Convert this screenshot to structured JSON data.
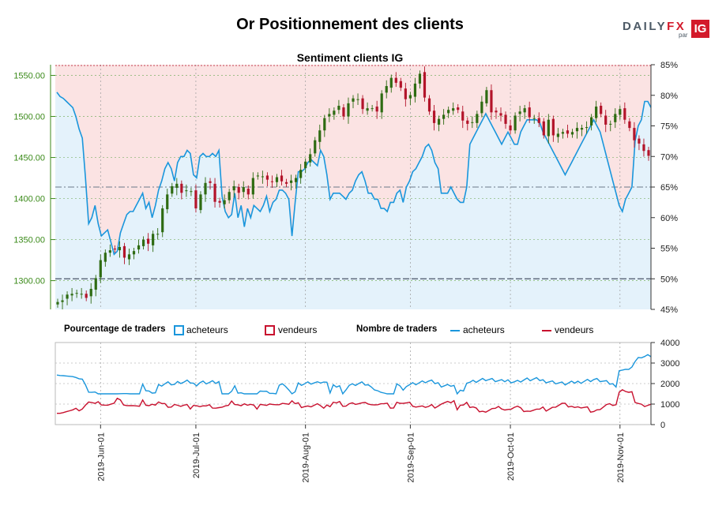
{
  "title": "Or Positionnement des clients",
  "logo": {
    "brand_a": "DAILY",
    "brand_b": "FX",
    "by": "par",
    "ig": "IG"
  },
  "subtitle": "Sentiment clients IG",
  "legend": {
    "pct_label": "Pourcentage de traders",
    "pct_long": "acheteurs",
    "pct_short": "vendeurs",
    "num_label": "Nombre de traders",
    "num_long": "acheteurs",
    "num_short": "vendeurs"
  },
  "colors": {
    "price_up": "#2e6b12",
    "price_down": "#b3142a",
    "long": "#1a96dc",
    "short": "#c8102e",
    "long_fill": "#e4f2fb",
    "short_fill": "#fbe3e3",
    "axis_green": "#3b8a1a"
  },
  "chart_data": [
    {
      "type": "candlestick_with_sentiment",
      "title": "Sentiment clients IG",
      "price_axis": {
        "ylim": [
          1265,
          1563
        ],
        "ticks": [
          "1300.00",
          "1350.00",
          "1400.00",
          "1450.00",
          "1500.00",
          "1550.00"
        ]
      },
      "sentiment_axis": {
        "ylim": [
          45,
          85
        ],
        "ticks": [
          "45%",
          "50%",
          "55%",
          "60%",
          "65%",
          "70%",
          "75%",
          "80%",
          "85%"
        ]
      },
      "x_dates": [
        "2019-05-21",
        "2019-05-22",
        "2019-05-23",
        "2019-05-24",
        "2019-05-27",
        "2019-05-28",
        "2019-05-29",
        "2019-05-30",
        "2019-05-31",
        "2019-06-03",
        "2019-06-04",
        "2019-06-05",
        "2019-06-06",
        "2019-06-07",
        "2019-06-10",
        "2019-06-11",
        "2019-06-12",
        "2019-06-13",
        "2019-06-14",
        "2019-06-17",
        "2019-06-18",
        "2019-06-19",
        "2019-06-20",
        "2019-06-21",
        "2019-06-24",
        "2019-06-25",
        "2019-06-26",
        "2019-06-27",
        "2019-06-28",
        "2019-07-01",
        "2019-07-02",
        "2019-07-03",
        "2019-07-04",
        "2019-07-05",
        "2019-07-08",
        "2019-07-09",
        "2019-07-10",
        "2019-07-11",
        "2019-07-12",
        "2019-07-15",
        "2019-07-16",
        "2019-07-17",
        "2019-07-18",
        "2019-07-19",
        "2019-07-22",
        "2019-07-23",
        "2019-07-24",
        "2019-07-25",
        "2019-07-26",
        "2019-07-29",
        "2019-07-30",
        "2019-07-31",
        "2019-08-01",
        "2019-08-02",
        "2019-08-05",
        "2019-08-06",
        "2019-08-07",
        "2019-08-08",
        "2019-08-09",
        "2019-08-12",
        "2019-08-13",
        "2019-08-14",
        "2019-08-15",
        "2019-08-16",
        "2019-08-19",
        "2019-08-20",
        "2019-08-21",
        "2019-08-22",
        "2019-08-23",
        "2019-08-26",
        "2019-08-27",
        "2019-08-28",
        "2019-08-29",
        "2019-08-30",
        "2019-09-02",
        "2019-09-03",
        "2019-09-04",
        "2019-09-05",
        "2019-09-06",
        "2019-09-09",
        "2019-09-10",
        "2019-09-11",
        "2019-09-12",
        "2019-09-13",
        "2019-09-16",
        "2019-09-17",
        "2019-09-18",
        "2019-09-19",
        "2019-09-20",
        "2019-09-23",
        "2019-09-24",
        "2019-09-25",
        "2019-09-26",
        "2019-09-27",
        "2019-09-30",
        "2019-10-01",
        "2019-10-02",
        "2019-10-03",
        "2019-10-04",
        "2019-10-07",
        "2019-10-08",
        "2019-10-09",
        "2019-10-10",
        "2019-10-11",
        "2019-10-14",
        "2019-10-15",
        "2019-10-16",
        "2019-10-17",
        "2019-10-18",
        "2019-10-21",
        "2019-10-22",
        "2019-10-23",
        "2019-10-24",
        "2019-10-25",
        "2019-10-28",
        "2019-10-29",
        "2019-10-30",
        "2019-10-31",
        "2019-11-01",
        "2019-11-04",
        "2019-11-05",
        "2019-11-06",
        "2019-11-07",
        "2019-11-08",
        "2019-11-11"
      ],
      "close": [
        1274,
        1276,
        1283,
        1284,
        1285,
        1284,
        1279,
        1290,
        1303,
        1325,
        1334,
        1337,
        1338,
        1341,
        1328,
        1332,
        1336,
        1343,
        1350,
        1345,
        1357,
        1357,
        1388,
        1405,
        1415,
        1418,
        1407,
        1410,
        1409,
        1388,
        1405,
        1419,
        1419,
        1396,
        1395,
        1398,
        1408,
        1415,
        1407,
        1414,
        1405,
        1425,
        1428,
        1427,
        1423,
        1420,
        1426,
        1421,
        1418,
        1422,
        1425,
        1435,
        1445,
        1454,
        1471,
        1483,
        1498,
        1503,
        1507,
        1513,
        1500,
        1516,
        1522,
        1521,
        1509,
        1510,
        1510,
        1506,
        1528,
        1537,
        1547,
        1541,
        1535,
        1521,
        1526,
        1540,
        1552,
        1523,
        1506,
        1492,
        1497,
        1502,
        1508,
        1510,
        1508,
        1495,
        1491,
        1493,
        1503,
        1518,
        1532,
        1505,
        1505,
        1501,
        1491,
        1483,
        1501,
        1506,
        1510,
        1499,
        1498,
        1492,
        1477,
        1496,
        1477,
        1479,
        1481,
        1479,
        1481,
        1486,
        1486,
        1487,
        1499,
        1512,
        1503,
        1490,
        1491,
        1503,
        1509,
        1496,
        1486,
        1471,
        1467,
        1458,
        1452
      ],
      "sentiment_long_pct": [
        80.5,
        79.8,
        79.5,
        79,
        78.5,
        78,
        76.5,
        74.5,
        73,
        66.5,
        59,
        60,
        62,
        59,
        57,
        57.5,
        58,
        56,
        54,
        54.5,
        57.5,
        59,
        60.5,
        61,
        61,
        62,
        63,
        64,
        61.5,
        62.5,
        60,
        62,
        64.5,
        66,
        68,
        69,
        68,
        66,
        69,
        70,
        70,
        71,
        70.5,
        67,
        66.5,
        70,
        70.5,
        70,
        70,
        70.5,
        70,
        71,
        63.5,
        61,
        60,
        60.5,
        64,
        60,
        62,
        58.5,
        61.5,
        60,
        62,
        61.5,
        61,
        62,
        63.5,
        61,
        62.5,
        63,
        64.5,
        64.5,
        64,
        63,
        57,
        62.5,
        67.5,
        67.5,
        68,
        69,
        69.5,
        69,
        68.5,
        71,
        70,
        67,
        63,
        64,
        64,
        64,
        63.5,
        63,
        64,
        64.5,
        66,
        67,
        67.5,
        66,
        64,
        64,
        63,
        63,
        61.5,
        61.5,
        61,
        62.5,
        62.5,
        64,
        64.5,
        62.5,
        65,
        66,
        67.5,
        68,
        69,
        70,
        71.5,
        72,
        71,
        69,
        68,
        64,
        64,
        64,
        65,
        64,
        63,
        62.5,
        62.5,
        65,
        72,
        73,
        74,
        75,
        76,
        77,
        76,
        75,
        74,
        73,
        72,
        73,
        74,
        73,
        72,
        72,
        74,
        75,
        76,
        76,
        76,
        76,
        75.5,
        74,
        73,
        72,
        71,
        70,
        69,
        68,
        67,
        68,
        69,
        70,
        71,
        72,
        73,
        74,
        75,
        76,
        75,
        74,
        72,
        70,
        68,
        66,
        64,
        62,
        61,
        63,
        64,
        65,
        72.5,
        75,
        76,
        79,
        79,
        78
      ],
      "traders_axis": {
        "ylim": [
          0,
          4000
        ],
        "ticks": [
          "0",
          "1000",
          "2000",
          "3000",
          "4000"
        ]
      },
      "x_ticks": [
        "2019-Jun-01",
        "2019-Jul-01",
        "2019-Aug-01",
        "2019-Sep-01",
        "2019-Oct-01",
        "2019-Nov-01"
      ]
    }
  ]
}
